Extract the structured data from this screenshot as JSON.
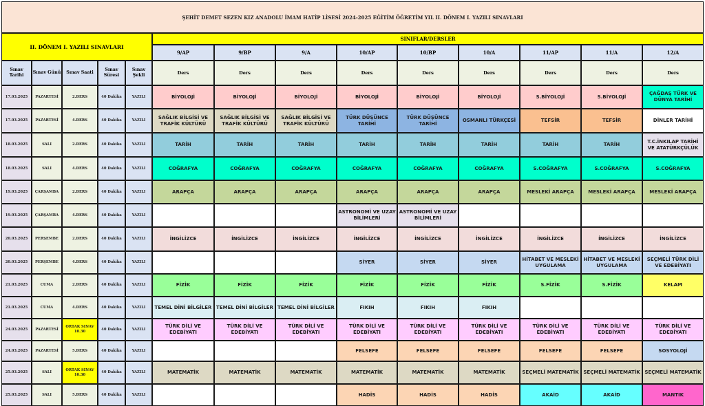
{
  "title": "ŞEHİT DEMET SEZEN KIZ ANADOLU İMAM HATİP LİSESİ 2024-2025 EĞİTİM ÖĞRETİM YIL  II. DÖNEM I. YAZILI SINAVLARI",
  "left_title": "II. DÖNEM I. YAZILI SINAVLARI",
  "siniflar_label": "SINIFLAR/DERSLER",
  "classes": [
    "9/AP",
    "9/BP",
    "9/A",
    "10/AP",
    "10/BP",
    "10/A",
    "11/AP",
    "11/A",
    "12/A"
  ],
  "ders_label": "Ders",
  "col_headers": {
    "tarih": "Sınav Tarihi",
    "gun": "Sınav Günü",
    "saat": "Sınav Saati",
    "sure": "Sınav Süresi",
    "sekil": "Sınav Şekli"
  },
  "colors": {
    "pink": "#ffcccc",
    "beige": "#ddd9c4",
    "blue": "#8db4e2",
    "orange": "#fac090",
    "steel": "#92cddc",
    "teal": "#00ffcc",
    "olive": "#c4d79b",
    "lavender": "#e6e0ec",
    "rose": "#f2dcdb",
    "lightblue": "#c5d9f1",
    "green": "#99ff99",
    "yellow": "#ffff66",
    "paleblue": "#daeef3",
    "violet": "#ffccff",
    "peach": "#fcd5b4",
    "tan": "#ddd9c4",
    "cyan": "#66ffff",
    "magenta": "#ff66cc",
    "white": "#ffffff"
  },
  "rows": [
    {
      "tarih": "17.03.2025",
      "gun": "PAZARTESİ",
      "saat": "2.DERS",
      "sure": "40 Dakika",
      "sekil": "YAZILI",
      "cells": [
        [
          "BİYOLOJİ",
          "pink"
        ],
        [
          "BİYOLOJİ",
          "pink"
        ],
        [
          "BİYOLOJİ",
          "pink"
        ],
        [
          "BİYOLOJİ",
          "pink"
        ],
        [
          "BİYOLOJİ",
          "pink"
        ],
        [
          "BİYOLOJİ",
          "pink"
        ],
        [
          "S.BİYOLOJİ",
          "pink"
        ],
        [
          "S.BİYOLOJİ",
          "pink"
        ],
        [
          "ÇAĞDAŞ TÜRK VE DÜNYA TARİHİ",
          "teal"
        ]
      ]
    },
    {
      "tarih": "17.03.2025",
      "gun": "PAZARTESİ",
      "saat": "4.DERS",
      "sure": "40 Dakika",
      "sekil": "YAZILI",
      "cells": [
        [
          "SAĞLIK BİLGİSİ VE TRAFİK KÜLTÜRÜ",
          "beige"
        ],
        [
          "SAĞLIK BİLGİSİ VE TRAFİK KÜLTÜRÜ",
          "beige"
        ],
        [
          "SAĞLIK BİLGİSİ VE TRAFİK KÜLTÜRÜ",
          "beige"
        ],
        [
          "TÜRK DÜŞÜNCE TARİHİ",
          "blue"
        ],
        [
          "TÜRK DÜŞÜNCE TARİHİ",
          "blue"
        ],
        [
          "OSMANLI TÜRKÇESİ",
          "blue"
        ],
        [
          "TEFSİR",
          "orange"
        ],
        [
          "TEFSİR",
          "orange"
        ],
        [
          "DİNLER TARİHİ",
          "white"
        ]
      ]
    },
    {
      "tarih": "18.03.2025",
      "gun": "SALI",
      "saat": "2.DERS",
      "sure": "40 Dakika",
      "sekil": "YAZILI",
      "cells": [
        [
          "TARİH",
          "steel"
        ],
        [
          "TARİH",
          "steel"
        ],
        [
          "TARİH",
          "steel"
        ],
        [
          "TARİH",
          "steel"
        ],
        [
          "TARİH",
          "steel"
        ],
        [
          "TARİH",
          "steel"
        ],
        [
          "TARİH",
          "steel"
        ],
        [
          "TARİH",
          "steel"
        ],
        [
          "T.C.İNKILAP TARİHİ VE ATATÜRKÇÜLÜK",
          "lavender"
        ]
      ]
    },
    {
      "tarih": "18.03.2025",
      "gun": "SALI",
      "saat": "4.DERS",
      "sure": "40 Dakika",
      "sekil": "YAZILI",
      "cells": [
        [
          "COĞRAFYA",
          "teal"
        ],
        [
          "COĞRAFYA",
          "teal"
        ],
        [
          "COĞRAFYA",
          "teal"
        ],
        [
          "COĞRAFYA",
          "teal"
        ],
        [
          "COĞRAFYA",
          "teal"
        ],
        [
          "COĞRAFYA",
          "teal"
        ],
        [
          "S.COĞRAFYA",
          "teal"
        ],
        [
          "S.COĞRAFYA",
          "teal"
        ],
        [
          "S.COĞRAFYA",
          "teal"
        ]
      ]
    },
    {
      "tarih": "19.03.2025",
      "gun": "ÇARŞAMBA",
      "saat": "2.DERS",
      "sure": "40 Dakika",
      "sekil": "YAZILI",
      "cells": [
        [
          "ARAPÇA",
          "olive"
        ],
        [
          "ARAPÇA",
          "olive"
        ],
        [
          "ARAPÇA",
          "olive"
        ],
        [
          "ARAPÇA",
          "olive"
        ],
        [
          "ARAPÇA",
          "olive"
        ],
        [
          "ARAPÇA",
          "olive"
        ],
        [
          "MESLEKİ ARAPÇA",
          "olive"
        ],
        [
          "MESLEKİ ARAPÇA",
          "olive"
        ],
        [
          "MESLEKİ ARAPÇA",
          "olive"
        ]
      ]
    },
    {
      "tarih": "19.03.2025",
      "gun": "ÇARŞAMBA",
      "saat": "4.DERS",
      "sure": "40 Dakika",
      "sekil": "YAZILI",
      "cells": [
        [
          "",
          "white"
        ],
        [
          "",
          "white"
        ],
        [
          "",
          "white"
        ],
        [
          "ASTRONOMİ VE UZAY BİLİMLERİ",
          "lavender"
        ],
        [
          "ASTRONOMİ VE UZAY BİLİMLERİ",
          "lavender"
        ],
        [
          "",
          "white"
        ],
        [
          "",
          "white"
        ],
        [
          "",
          "white"
        ],
        [
          "",
          "white"
        ]
      ]
    },
    {
      "tarih": "20.03.2025",
      "gun": "PERŞEMBE",
      "saat": "2.DERS",
      "sure": "40 Dakika",
      "sekil": "YAZILI",
      "cells": [
        [
          "İNGİLİZCE",
          "rose"
        ],
        [
          "İNGİLİZCE",
          "rose"
        ],
        [
          "İNGİLİZCE",
          "rose"
        ],
        [
          "İNGİLİZCE",
          "rose"
        ],
        [
          "İNGİLİZCE",
          "rose"
        ],
        [
          "İNGİLİZCE",
          "rose"
        ],
        [
          "İNGİLİZCE",
          "rose"
        ],
        [
          "İNGİLİZCE",
          "rose"
        ],
        [
          "İNGİLİZCE",
          "rose"
        ]
      ]
    },
    {
      "tarih": "20.03.2025",
      "gun": "PERŞEMBE",
      "saat": "4.DERS",
      "sure": "40 Dakika",
      "sekil": "YAZILI",
      "cells": [
        [
          "",
          "white"
        ],
        [
          "",
          "white"
        ],
        [
          "",
          "white"
        ],
        [
          "SİYER",
          "lightblue"
        ],
        [
          "SİYER",
          "lightblue"
        ],
        [
          "SİYER",
          "lightblue"
        ],
        [
          "HİTABET VE MESLEKİ UYGULAMA",
          "lightblue"
        ],
        [
          "HİTABET VE MESLEKİ UYGULAMA",
          "lightblue"
        ],
        [
          "SEÇMELİ TÜRK DİLİ VE EDEBİYATI",
          "lightblue"
        ]
      ]
    },
    {
      "tarih": "21.03.2025",
      "gun": "CUMA",
      "saat": "2.DERS",
      "sure": "40 Dakika",
      "sekil": "YAZILI",
      "cells": [
        [
          "FİZİK",
          "green"
        ],
        [
          "FİZİK",
          "green"
        ],
        [
          "FİZİK",
          "green"
        ],
        [
          "FİZİK",
          "green"
        ],
        [
          "FİZİK",
          "green"
        ],
        [
          "FİZİK",
          "green"
        ],
        [
          "S.FİZİK",
          "green"
        ],
        [
          "S.FİZİK",
          "green"
        ],
        [
          "KELAM",
          "yellow"
        ]
      ]
    },
    {
      "tarih": "21.03.2025",
      "gun": "CUMA",
      "saat": "4.DERS",
      "sure": "40 Dakika",
      "sekil": "YAZILI",
      "cells": [
        [
          "TEMEL DİNİ BİLGİLER",
          "paleblue"
        ],
        [
          "TEMEL DİNİ BİLGİLER",
          "paleblue"
        ],
        [
          "TEMEL DİNİ BİLGİLER",
          "paleblue"
        ],
        [
          "FIKIH",
          "paleblue"
        ],
        [
          "FIKIH",
          "paleblue"
        ],
        [
          "FIKIH",
          "paleblue"
        ],
        [
          "",
          "white"
        ],
        [
          "",
          "white"
        ],
        [
          "",
          "white"
        ]
      ]
    },
    {
      "tarih": "24.03.2025",
      "gun": "PAZARTESİ",
      "saat": "ORTAK SINAV 10.30",
      "saat_highlight": true,
      "sure": "40 Dakika",
      "sekil": "YAZILI",
      "cells": [
        [
          "TÜRK DİLİ VE EDEBİYATI",
          "violet"
        ],
        [
          "TÜRK DİLİ VE EDEBİYATI",
          "violet"
        ],
        [
          "TÜRK DİLİ VE EDEBİYATI",
          "violet"
        ],
        [
          "TÜRK DİLİ VE EDEBİYATI",
          "violet"
        ],
        [
          "TÜRK DİLİ VE EDEBİYATI",
          "violet"
        ],
        [
          "TÜRK DİLİ VE EDEBİYATI",
          "violet"
        ],
        [
          "TÜRK DİLİ VE EDEBİYATI",
          "violet"
        ],
        [
          "TÜRK DİLİ VE EDEBİYATI",
          "violet"
        ],
        [
          "TÜRK DİLİ VE EDEBİYATI",
          "violet"
        ]
      ]
    },
    {
      "tarih": "24.03.2025",
      "gun": "PAZARTESİ",
      "saat": "5.DERS",
      "sure": "40 Dakika",
      "sekil": "YAZILI",
      "cells": [
        [
          "",
          "white"
        ],
        [
          "",
          "white"
        ],
        [
          "",
          "white"
        ],
        [
          "FELSEFE",
          "peach"
        ],
        [
          "FELSEFE",
          "peach"
        ],
        [
          "FELSEFE",
          "peach"
        ],
        [
          "FELSEFE",
          "peach"
        ],
        [
          "FELSEFE",
          "peach"
        ],
        [
          "SOSYOLOJİ",
          "lightblue"
        ]
      ]
    },
    {
      "tarih": "25.03.2025",
      "gun": "SALI",
      "saat": "ORTAK SINAV 10.30",
      "saat_highlight": true,
      "sure": "40 Dakika",
      "sekil": "YAZILI",
      "cells": [
        [
          "MATEMATİK",
          "tan"
        ],
        [
          "MATEMATİK",
          "tan"
        ],
        [
          "MATEMATİK",
          "tan"
        ],
        [
          "MATEMATİK",
          "tan"
        ],
        [
          "MATEMATİK",
          "tan"
        ],
        [
          "MATEMATİK",
          "tan"
        ],
        [
          "SEÇMELİ MATEMATİK",
          "tan"
        ],
        [
          "SEÇMELİ MATEMATİK",
          "tan"
        ],
        [
          "SEÇMELİ MATEMATİK",
          "tan"
        ]
      ]
    },
    {
      "tarih": "25.03.2025",
      "gun": "SALI",
      "saat": "5.DERS",
      "sure": "40 Dakika",
      "sekil": "YAZILI",
      "cells": [
        [
          "",
          "white"
        ],
        [
          "",
          "white"
        ],
        [
          "",
          "white"
        ],
        [
          "HADİS",
          "peach"
        ],
        [
          "HADİS",
          "peach"
        ],
        [
          "HADİS",
          "peach"
        ],
        [
          "AKAİD",
          "cyan"
        ],
        [
          "AKAİD",
          "cyan"
        ],
        [
          "MANTIK",
          "magenta"
        ]
      ]
    }
  ]
}
